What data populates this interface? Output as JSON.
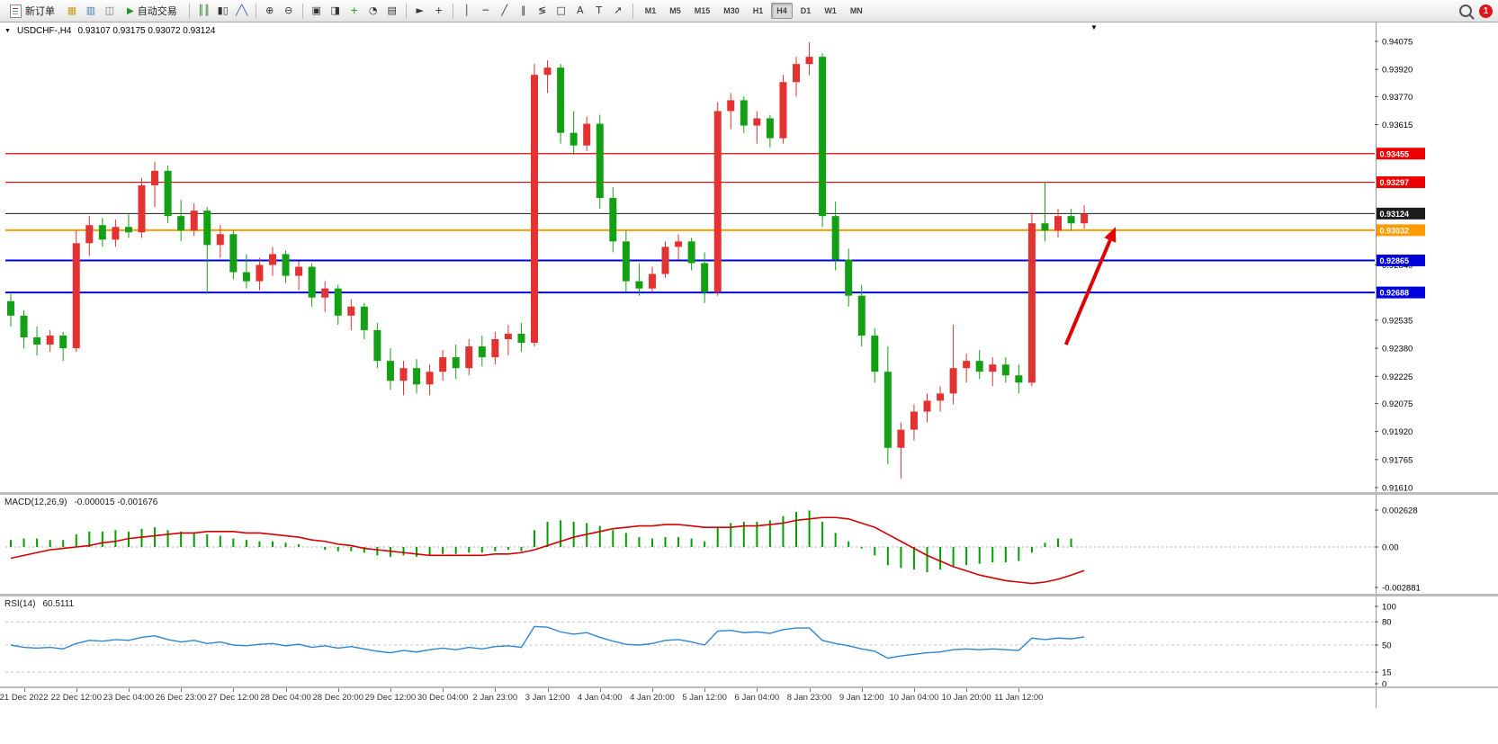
{
  "toolbar": {
    "new_order_label": "新订单",
    "autotrade_label": "自动交易",
    "notification_count": "1",
    "timeframes": [
      "M1",
      "M5",
      "M15",
      "M30",
      "H1",
      "H4",
      "D1",
      "W1",
      "MN"
    ],
    "active_timeframe": "H4",
    "icon_groups": [
      {
        "slot": "quick",
        "icons": [
          {
            "name": "market-watch-icon",
            "glyph": "▦",
            "color": "#c79a22"
          },
          {
            "name": "data-window-icon",
            "glyph": "▥",
            "color": "#4a7ab5"
          },
          {
            "name": "navigator-icon",
            "glyph": "◫",
            "color": "#777777"
          }
        ]
      },
      {
        "slot": "mid",
        "icons": [
          {
            "name": "bar-chart-icon",
            "glyph": "║║",
            "color": "#2f7d2f"
          },
          {
            "name": "candlestick-chart-icon",
            "glyph": "▮▯",
            "color": "#333333"
          },
          {
            "name": "line-chart-icon",
            "glyph": "╱╲",
            "color": "#2f5db2"
          }
        ]
      },
      {
        "slot": "mid",
        "icons": [
          {
            "name": "zoom-in-icon",
            "glyph": "⊕",
            "color": "#333333"
          },
          {
            "name": "zoom-out-icon",
            "glyph": "⊖",
            "color": "#333333"
          }
        ]
      },
      {
        "slot": "mid",
        "icons": [
          {
            "name": "tile-windows-icon",
            "glyph": "▣",
            "color": "#333333"
          },
          {
            "name": "new-chart-icon",
            "glyph": "◨",
            "color": "#333333"
          },
          {
            "name": "indicators-icon",
            "glyph": "+",
            "color": "#1d9a1d"
          },
          {
            "name": "period-icon",
            "glyph": "◔",
            "color": "#333333"
          },
          {
            "name": "templates-icon",
            "glyph": "▤",
            "color": "#333333"
          }
        ]
      },
      {
        "slot": "mid",
        "icons": [
          {
            "name": "cursor-icon",
            "glyph": "►",
            "color": "#333333"
          },
          {
            "name": "crosshair-icon",
            "glyph": "+",
            "color": "#333333"
          }
        ]
      },
      {
        "slot": "mid",
        "icons": [
          {
            "name": "vertical-line-icon",
            "glyph": "│",
            "color": "#333333"
          },
          {
            "name": "horizontal-line-icon",
            "glyph": "─",
            "color": "#333333"
          },
          {
            "name": "trendline-icon",
            "glyph": "╱",
            "color": "#333333"
          },
          {
            "name": "channel-icon",
            "glyph": "∥",
            "color": "#333333"
          },
          {
            "name": "fibonacci-icon",
            "glyph": "≶",
            "color": "#333333"
          },
          {
            "name": "shapes-icon",
            "glyph": "□",
            "color": "#333333"
          },
          {
            "name": "text-icon",
            "glyph": "A",
            "color": "#333333"
          },
          {
            "name": "label-icon",
            "glyph": "T",
            "color": "#333333"
          },
          {
            "name": "arrow-tools-icon",
            "glyph": "↗",
            "color": "#333333"
          }
        ]
      }
    ]
  },
  "chart_header": {
    "symbol_period": "USDCHF-,H4",
    "ohlc": "0.93107 0.93175 0.93072 0.93124"
  },
  "chart_data": {
    "type": "candlestick",
    "symbol": "USDCHF",
    "timeframe": "H4",
    "price_min": 0.9161,
    "price_max": 0.94075,
    "colors": {
      "up": "#e23232",
      "down": "#14a014",
      "arrow": "#e00000"
    },
    "price_axis": [
      "0.94075",
      "0.93920",
      "0.93770",
      "0.93615",
      "0.92840",
      "0.92535",
      "0.92380",
      "0.92225",
      "0.92075",
      "0.91920",
      "0.91765",
      "0.91610"
    ],
    "hlines": [
      {
        "price": 0.93455,
        "label": "0.93455",
        "color": "#ee0000",
        "width": 1.2
      },
      {
        "price": 0.93297,
        "label": "0.93297",
        "color": "#ee0000",
        "width": 1.2
      },
      {
        "price": 0.93124,
        "label": "0.93124",
        "color": "#1c1c1c",
        "width": 1
      },
      {
        "price": 0.93032,
        "label": "0.93032",
        "color": "#ff9a00",
        "width": 2
      },
      {
        "price": 0.92865,
        "label": "0.92865",
        "color": "#0000dd",
        "width": 2
      },
      {
        "price": 0.92688,
        "label": "0.92688",
        "color": "#0000dd",
        "width": 2
      }
    ],
    "arrow": {
      "from": [
        80.6,
        0.924
      ],
      "to": [
        84.4,
        0.9305
      ]
    },
    "candles": [
      [
        0.9264,
        0.9268,
        0.925,
        0.9256
      ],
      [
        0.9256,
        0.9259,
        0.9238,
        0.9244
      ],
      [
        0.9244,
        0.925,
        0.9234,
        0.924
      ],
      [
        0.924,
        0.9248,
        0.9236,
        0.9245
      ],
      [
        0.9245,
        0.9247,
        0.9231,
        0.9238
      ],
      [
        0.9238,
        0.9303,
        0.9236,
        0.9296
      ],
      [
        0.9296,
        0.9311,
        0.9289,
        0.9306
      ],
      [
        0.9306,
        0.931,
        0.9294,
        0.9298
      ],
      [
        0.9298,
        0.9309,
        0.9294,
        0.9305
      ],
      [
        0.9305,
        0.9312,
        0.9299,
        0.9302
      ],
      [
        0.9302,
        0.9332,
        0.9299,
        0.9328
      ],
      [
        0.9328,
        0.9341,
        0.9316,
        0.9336
      ],
      [
        0.9336,
        0.9339,
        0.9307,
        0.9311
      ],
      [
        0.9311,
        0.932,
        0.9297,
        0.9303
      ],
      [
        0.9303,
        0.9318,
        0.93,
        0.9314
      ],
      [
        0.9314,
        0.9316,
        0.9268,
        0.9295
      ],
      [
        0.9295,
        0.9306,
        0.9288,
        0.9301
      ],
      [
        0.9301,
        0.9303,
        0.9276,
        0.928
      ],
      [
        0.928,
        0.929,
        0.9271,
        0.9275
      ],
      [
        0.9275,
        0.9288,
        0.927,
        0.9284
      ],
      [
        0.9284,
        0.9294,
        0.9278,
        0.929
      ],
      [
        0.929,
        0.9292,
        0.9274,
        0.9278
      ],
      [
        0.9278,
        0.9286,
        0.927,
        0.9283
      ],
      [
        0.9283,
        0.9285,
        0.9261,
        0.9266
      ],
      [
        0.9266,
        0.9275,
        0.9258,
        0.9271
      ],
      [
        0.9271,
        0.9273,
        0.9251,
        0.9256
      ],
      [
        0.9256,
        0.9265,
        0.9248,
        0.9261
      ],
      [
        0.9261,
        0.9263,
        0.9243,
        0.9248
      ],
      [
        0.9248,
        0.9252,
        0.9227,
        0.9231
      ],
      [
        0.9231,
        0.9238,
        0.9215,
        0.922
      ],
      [
        0.922,
        0.9231,
        0.9212,
        0.9227
      ],
      [
        0.9227,
        0.9232,
        0.9213,
        0.9218
      ],
      [
        0.9218,
        0.9229,
        0.9212,
        0.9225
      ],
      [
        0.9225,
        0.9237,
        0.922,
        0.9233
      ],
      [
        0.9233,
        0.924,
        0.9221,
        0.9227
      ],
      [
        0.9227,
        0.9243,
        0.9223,
        0.9239
      ],
      [
        0.9239,
        0.9245,
        0.9228,
        0.9233
      ],
      [
        0.9233,
        0.9247,
        0.9229,
        0.9243
      ],
      [
        0.9243,
        0.9251,
        0.9234,
        0.9246
      ],
      [
        0.9246,
        0.9252,
        0.9236,
        0.9241
      ],
      [
        0.9241,
        0.9395,
        0.9239,
        0.9389
      ],
      [
        0.9389,
        0.9397,
        0.9379,
        0.9393
      ],
      [
        0.9393,
        0.9395,
        0.9351,
        0.9357
      ],
      [
        0.9357,
        0.9369,
        0.9345,
        0.935
      ],
      [
        0.935,
        0.9366,
        0.9347,
        0.9362
      ],
      [
        0.9362,
        0.9367,
        0.9315,
        0.9321
      ],
      [
        0.9321,
        0.9327,
        0.9291,
        0.9297
      ],
      [
        0.9297,
        0.9303,
        0.9269,
        0.9275
      ],
      [
        0.9275,
        0.9285,
        0.9267,
        0.9271
      ],
      [
        0.9271,
        0.9283,
        0.9269,
        0.9279
      ],
      [
        0.9279,
        0.9297,
        0.9277,
        0.9294
      ],
      [
        0.9294,
        0.9301,
        0.9287,
        0.9297
      ],
      [
        0.9297,
        0.9299,
        0.9281,
        0.9285
      ],
      [
        0.9285,
        0.9291,
        0.9263,
        0.9269
      ],
      [
        0.9269,
        0.9374,
        0.9267,
        0.9369
      ],
      [
        0.9369,
        0.9379,
        0.9359,
        0.9375
      ],
      [
        0.9375,
        0.9377,
        0.9357,
        0.9361
      ],
      [
        0.9361,
        0.9369,
        0.9351,
        0.9365
      ],
      [
        0.9365,
        0.9367,
        0.9349,
        0.9354
      ],
      [
        0.9354,
        0.9389,
        0.9351,
        0.9385
      ],
      [
        0.9385,
        0.9399,
        0.9377,
        0.9395
      ],
      [
        0.9395,
        0.9407,
        0.9389,
        0.9399
      ],
      [
        0.9399,
        0.9401,
        0.9305,
        0.9311
      ],
      [
        0.9311,
        0.9319,
        0.9281,
        0.9287
      ],
      [
        0.9287,
        0.9293,
        0.9261,
        0.9267
      ],
      [
        0.9267,
        0.9273,
        0.9239,
        0.9245
      ],
      [
        0.9245,
        0.9249,
        0.9219,
        0.9225
      ],
      [
        0.9225,
        0.9239,
        0.9174,
        0.9183
      ],
      [
        0.9183,
        0.9197,
        0.9166,
        0.9193
      ],
      [
        0.9193,
        0.9207,
        0.9187,
        0.9203
      ],
      [
        0.9203,
        0.9213,
        0.9197,
        0.9209
      ],
      [
        0.9209,
        0.9217,
        0.9203,
        0.9213
      ],
      [
        0.9213,
        0.9251,
        0.9207,
        0.9227
      ],
      [
        0.9227,
        0.9235,
        0.9219,
        0.9231
      ],
      [
        0.9231,
        0.9237,
        0.9221,
        0.9225
      ],
      [
        0.9225,
        0.9233,
        0.9217,
        0.9229
      ],
      [
        0.9229,
        0.9233,
        0.9219,
        0.9223
      ],
      [
        0.9223,
        0.9229,
        0.9213,
        0.9219
      ],
      [
        0.9219,
        0.9313,
        0.9217,
        0.9307
      ],
      [
        0.9307,
        0.933,
        0.9297,
        0.9303
      ],
      [
        0.9303,
        0.9315,
        0.9299,
        0.9311
      ],
      [
        0.9311,
        0.9315,
        0.9303,
        0.9307
      ],
      [
        0.9307,
        0.9317,
        0.9304,
        0.93124
      ]
    ],
    "time_labels": [
      {
        "i": 1,
        "t": "21 Dec 2022"
      },
      {
        "i": 5,
        "t": "22 Dec 12:00"
      },
      {
        "i": 9,
        "t": "23 Dec 04:00"
      },
      {
        "i": 13,
        "t": "26 Dec 23:00"
      },
      {
        "i": 17,
        "t": "27 Dec 12:00"
      },
      {
        "i": 21,
        "t": "28 Dec 04:00"
      },
      {
        "i": 25,
        "t": "28 Dec 20:00"
      },
      {
        "i": 29,
        "t": "29 Dec 12:00"
      },
      {
        "i": 33,
        "t": "30 Dec 04:00"
      },
      {
        "i": 37,
        "t": "2 Jan 23:00"
      },
      {
        "i": 41,
        "t": "3 Jan 12:00"
      },
      {
        "i": 45,
        "t": "4 Jan 04:00"
      },
      {
        "i": 49,
        "t": "4 Jan 20:00"
      },
      {
        "i": 53,
        "t": "5 Jan 12:00"
      },
      {
        "i": 57,
        "t": "6 Jan 04:00"
      },
      {
        "i": 61,
        "t": "8 Jan 23:00"
      },
      {
        "i": 65,
        "t": "9 Jan 12:00"
      },
      {
        "i": 69,
        "t": "10 Jan 04:00"
      },
      {
        "i": 73,
        "t": "10 Jan 20:00"
      },
      {
        "i": 77,
        "t": "11 Jan 12:00"
      }
    ]
  },
  "macd": {
    "title": "MACD(12,26,9)",
    "values_text": "-0.000015 -0.001676",
    "axis": [
      "0.002628",
      "0.00",
      "-0.002881"
    ],
    "color_hist": "#00a000",
    "color_signal": "#d40000",
    "histogram": [
      0.0005,
      0.0006,
      0.0006,
      0.0005,
      0.0005,
      0.0009,
      0.0011,
      0.0011,
      0.0012,
      0.0011,
      0.0013,
      0.0014,
      0.0012,
      0.0011,
      0.001,
      0.0009,
      0.0008,
      0.0006,
      0.0005,
      0.0004,
      0.0004,
      0.0003,
      0.0002,
      0.0,
      -0.0002,
      -0.0003,
      -0.0003,
      -0.0004,
      -0.0006,
      -0.0007,
      -0.0006,
      -0.0007,
      -0.0006,
      -0.0005,
      -0.0005,
      -0.0004,
      -0.0004,
      -0.0003,
      -0.0002,
      -0.0003,
      0.0012,
      0.0018,
      0.0019,
      0.0018,
      0.0017,
      0.0015,
      0.0012,
      0.001,
      0.0007,
      0.0006,
      0.0007,
      0.0007,
      0.0006,
      0.0004,
      0.0014,
      0.0017,
      0.0018,
      0.0018,
      0.0019,
      0.0022,
      0.0025,
      0.0026,
      0.0018,
      0.001,
      0.0004,
      -0.0001,
      -0.0006,
      -0.0013,
      -0.0015,
      -0.0016,
      -0.0018,
      -0.0016,
      -0.0014,
      -0.0013,
      -0.0012,
      -0.0011,
      -0.0011,
      -0.001,
      -0.0004,
      0.0003,
      0.0006,
      0.0006,
      0.0
    ],
    "signal": [
      -0.0008,
      -0.0006,
      -0.0004,
      -0.0002,
      -0.0001,
      0.0,
      0.0001,
      0.0003,
      0.0004,
      0.0006,
      0.0007,
      0.0008,
      0.0009,
      0.001,
      0.001,
      0.0011,
      0.0011,
      0.0011,
      0.001,
      0.001,
      0.0009,
      0.0008,
      0.0007,
      0.0005,
      0.0004,
      0.0002,
      0.0001,
      -0.0001,
      -0.0002,
      -0.0003,
      -0.0004,
      -0.0005,
      -0.0006,
      -0.0006,
      -0.0006,
      -0.0006,
      -0.0006,
      -0.0005,
      -0.0005,
      -0.0004,
      -0.0002,
      0.0001,
      0.0004,
      0.0007,
      0.0009,
      0.0011,
      0.0013,
      0.0014,
      0.0015,
      0.0015,
      0.0016,
      0.0016,
      0.0015,
      0.0014,
      0.0014,
      0.0014,
      0.0015,
      0.0015,
      0.0016,
      0.0017,
      0.0019,
      0.002,
      0.0021,
      0.0021,
      0.002,
      0.0017,
      0.0014,
      0.0009,
      0.0004,
      -0.0001,
      -0.0006,
      -0.001,
      -0.0014,
      -0.0017,
      -0.002,
      -0.0022,
      -0.0024,
      -0.0025,
      -0.0026,
      -0.0025,
      -0.0023,
      -0.002,
      -0.00168
    ]
  },
  "rsi": {
    "title": "RSI(14)",
    "value_text": "60.5111",
    "axis": [
      "100",
      "80",
      "50",
      "15",
      "0"
    ],
    "level_lines": [
      80,
      50,
      15
    ],
    "color_line": "#2e86d0",
    "values": [
      50,
      47,
      46,
      47,
      45,
      52,
      56,
      55,
      57,
      56,
      60,
      62,
      57,
      54,
      56,
      52,
      54,
      50,
      49,
      51,
      52,
      49,
      51,
      47,
      49,
      46,
      48,
      45,
      42,
      40,
      43,
      41,
      44,
      46,
      44,
      47,
      45,
      48,
      49,
      47,
      74,
      73,
      67,
      64,
      66,
      60,
      55,
      51,
      50,
      52,
      56,
      57,
      54,
      50,
      68,
      69,
      66,
      67,
      65,
      70,
      72,
      72,
      56,
      52,
      49,
      45,
      42,
      33,
      36,
      38,
      40,
      41,
      44,
      45,
      44,
      45,
      44,
      43,
      59,
      57,
      59,
      58,
      60.5
    ]
  }
}
